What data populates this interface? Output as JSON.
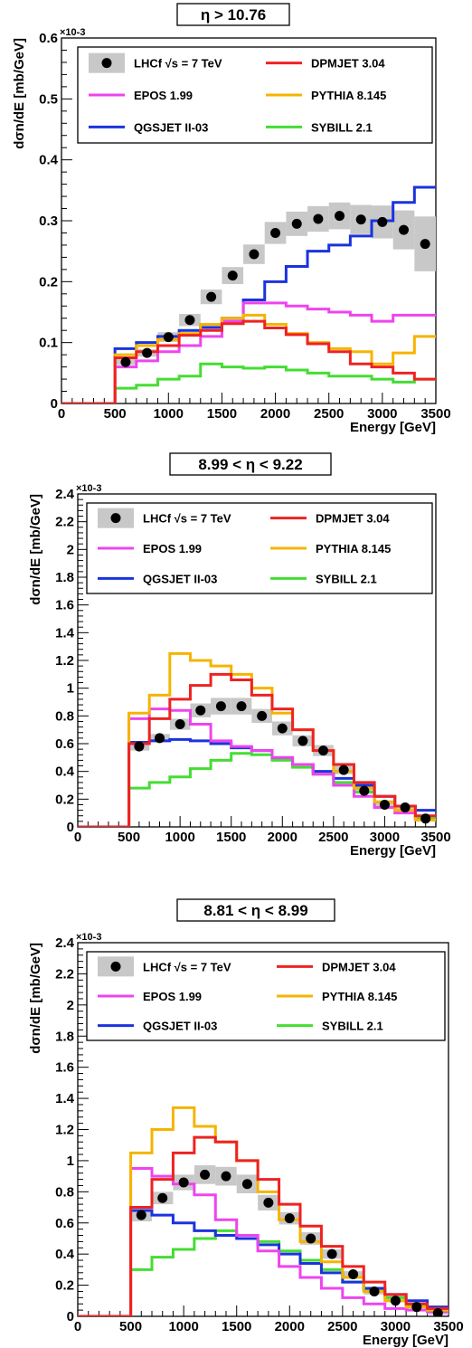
{
  "colors": {
    "LHCf": "#000000",
    "band": "#c8c8c8",
    "EPOS": "#ee44ee",
    "QGSJET": "#1a33dd",
    "DPMJET": "#ee2222",
    "PYTHIA": "#f5b400",
    "SYBILL": "#44dd33"
  },
  "chart_data": [
    {
      "type": "line",
      "title": "η > 10.76",
      "xlabel": "Energy [GeV]",
      "ylabel": "dσn/dE [mb/GeV]",
      "y_exponent": "×10-3",
      "xlim": [
        0,
        3500
      ],
      "ylim": [
        0,
        0.6
      ],
      "xticks": [
        0,
        500,
        1000,
        1500,
        2000,
        2500,
        3000,
        3500
      ],
      "xtick_labels": [
        "0",
        "500",
        "1000",
        "1500",
        "2000",
        "2500",
        "3000",
        "3500"
      ],
      "yticks": [
        0,
        0.1,
        0.2,
        0.3,
        0.4,
        0.5,
        0.6
      ],
      "ytick_labels": [
        "0",
        "0.1",
        "0.2",
        "0.3",
        "0.4",
        "0.5",
        "0.6"
      ],
      "bin_edges": [
        500,
        700,
        900,
        1100,
        1300,
        1500,
        1700,
        1900,
        2100,
        2300,
        2500,
        2700,
        2900,
        3100,
        3300,
        3500
      ],
      "legend": {
        "placement": "top",
        "entries": [
          {
            "label": "LHCf √s = 7 TeV",
            "key": "LHCf",
            "marker": "point"
          },
          {
            "label": "DPMJET 3.04",
            "key": "DPMJET",
            "marker": "line"
          },
          {
            "label": "EPOS 1.99",
            "key": "EPOS",
            "marker": "line"
          },
          {
            "label": "PYTHIA 8.145",
            "key": "PYTHIA",
            "marker": "line"
          },
          {
            "label": "QGSJET II-03",
            "key": "QGSJET",
            "marker": "line"
          },
          {
            "label": "SYBILL 2.1",
            "key": "SYBILL",
            "marker": "line"
          }
        ]
      },
      "data": {
        "name": "LHCf √s = 7 TeV",
        "x": [
          600,
          800,
          1000,
          1200,
          1400,
          1600,
          1800,
          2000,
          2200,
          2400,
          2600,
          2800,
          3000,
          3200,
          3400
        ],
        "y": [
          0.068,
          0.083,
          0.109,
          0.137,
          0.175,
          0.21,
          0.245,
          0.28,
          0.295,
          0.303,
          0.308,
          0.302,
          0.298,
          0.285,
          0.262
        ],
        "err": [
          0.005,
          0.006,
          0.008,
          0.01,
          0.012,
          0.014,
          0.016,
          0.018,
          0.02,
          0.021,
          0.022,
          0.024,
          0.027,
          0.032,
          0.045
        ]
      },
      "series": [
        {
          "name": "DPMJET 3.04",
          "key": "DPMJET",
          "values": [
            0.075,
            0.085,
            0.095,
            0.112,
            0.12,
            0.131,
            0.135,
            0.124,
            0.113,
            0.098,
            0.085,
            0.065,
            0.06,
            0.05,
            0.04
          ]
        },
        {
          "name": "PYTHIA 8.145",
          "key": "PYTHIA",
          "values": [
            0.08,
            0.095,
            0.105,
            0.115,
            0.13,
            0.14,
            0.145,
            0.13,
            0.115,
            0.1,
            0.09,
            0.085,
            0.065,
            0.083,
            0.11
          ]
        },
        {
          "name": "EPOS 1.99",
          "key": "EPOS",
          "values": [
            0.06,
            0.07,
            0.085,
            0.095,
            0.11,
            0.135,
            0.165,
            0.165,
            0.16,
            0.155,
            0.15,
            0.145,
            0.135,
            0.145,
            0.145
          ]
        },
        {
          "name": "QGSJET II-03",
          "key": "QGSJET",
          "values": [
            0.09,
            0.1,
            0.11,
            0.12,
            0.125,
            0.14,
            0.17,
            0.2,
            0.225,
            0.25,
            0.26,
            0.275,
            0.3,
            0.33,
            0.355
          ]
        },
        {
          "name": "SYBILL 2.1",
          "key": "SYBILL",
          "values": [
            0.025,
            0.03,
            0.04,
            0.045,
            0.065,
            0.06,
            0.058,
            0.06,
            0.055,
            0.05,
            0.045,
            0.045,
            0.04,
            0.035,
            0.04
          ]
        }
      ]
    },
    {
      "type": "line",
      "title": "8.99 < η < 9.22",
      "xlabel": "Energy [GeV]",
      "ylabel": "dσn/dE [mb/GeV]",
      "y_exponent": "×10-3",
      "xlim": [
        0,
        3500
      ],
      "ylim": [
        0,
        2.4
      ],
      "xticks": [
        0,
        500,
        1000,
        1500,
        2000,
        2500,
        3000,
        3500
      ],
      "xtick_labels": [
        "0",
        "500",
        "1000",
        "1500",
        "2000",
        "2500",
        "3000",
        "3500"
      ],
      "yticks": [
        0,
        0.2,
        0.4,
        0.6,
        0.8,
        1.0,
        1.2,
        1.4,
        1.6,
        1.8,
        2.0,
        2.2,
        2.4
      ],
      "ytick_labels": [
        "0",
        "0.2",
        "0.4",
        "0.6",
        "0.8",
        "1",
        "1.2",
        "1.4",
        "1.6",
        "1.8",
        "2",
        "2.2",
        "2.4"
      ],
      "bin_edges": [
        500,
        700,
        900,
        1100,
        1300,
        1500,
        1700,
        1900,
        2100,
        2300,
        2500,
        2700,
        2900,
        3100,
        3300,
        3500
      ],
      "legend": {
        "placement": "top",
        "entries": [
          {
            "label": "LHCf √s = 7 TeV",
            "key": "LHCf",
            "marker": "point"
          },
          {
            "label": "DPMJET 3.04",
            "key": "DPMJET",
            "marker": "line"
          },
          {
            "label": "EPOS 1.99",
            "key": "EPOS",
            "marker": "line"
          },
          {
            "label": "PYTHIA 8.145",
            "key": "PYTHIA",
            "marker": "line"
          },
          {
            "label": "QGSJET II-03",
            "key": "QGSJET",
            "marker": "line"
          },
          {
            "label": "SYBILL 2.1",
            "key": "SYBILL",
            "marker": "line"
          }
        ]
      },
      "data": {
        "name": "LHCf √s = 7 TeV",
        "x": [
          600,
          800,
          1000,
          1200,
          1400,
          1600,
          1800,
          2000,
          2200,
          2400,
          2600,
          2800,
          3000,
          3200,
          3400
        ],
        "y": [
          0.58,
          0.64,
          0.74,
          0.84,
          0.87,
          0.87,
          0.8,
          0.71,
          0.62,
          0.55,
          0.41,
          0.26,
          0.16,
          0.14,
          0.06
        ],
        "err": [
          0.03,
          0.03,
          0.04,
          0.05,
          0.06,
          0.06,
          0.05,
          0.05,
          0.04,
          0.04,
          0.03,
          0.02,
          0.02,
          0.02,
          0.01
        ]
      },
      "series": [
        {
          "name": "DPMJET 3.04",
          "key": "DPMJET",
          "values": [
            0.6,
            0.78,
            0.92,
            1.02,
            1.1,
            1.06,
            0.95,
            0.85,
            0.7,
            0.55,
            0.45,
            0.32,
            0.22,
            0.15,
            0.08
          ]
        },
        {
          "name": "PYTHIA 8.145",
          "key": "PYTHIA",
          "values": [
            0.82,
            0.95,
            1.25,
            1.2,
            1.16,
            1.1,
            1.0,
            0.82,
            0.7,
            0.55,
            0.4,
            0.28,
            0.18,
            0.12,
            0.05
          ]
        },
        {
          "name": "EPOS 1.99",
          "key": "EPOS",
          "values": [
            0.78,
            0.85,
            0.84,
            0.74,
            0.62,
            0.58,
            0.55,
            0.5,
            0.45,
            0.38,
            0.3,
            0.22,
            0.14,
            0.1,
            0.05
          ]
        },
        {
          "name": "QGSJET II-03",
          "key": "QGSJET",
          "values": [
            0.61,
            0.62,
            0.63,
            0.62,
            0.6,
            0.57,
            0.55,
            0.5,
            0.45,
            0.4,
            0.35,
            0.3,
            0.22,
            0.15,
            0.12
          ]
        },
        {
          "name": "SYBILL 2.1",
          "key": "SYBILL",
          "values": [
            0.28,
            0.32,
            0.36,
            0.42,
            0.48,
            0.53,
            0.52,
            0.48,
            0.43,
            0.38,
            0.32,
            0.25,
            0.18,
            0.12,
            0.06
          ]
        }
      ]
    },
    {
      "type": "line",
      "title": "8.81 < η < 8.99",
      "xlabel": "Energy [GeV]",
      "ylabel": "dσn/dE [mb/GeV]",
      "y_exponent": "×10-3",
      "xlim": [
        0,
        3500
      ],
      "ylim": [
        0,
        2.4
      ],
      "xticks": [
        0,
        500,
        1000,
        1500,
        2000,
        2500,
        3000,
        3500
      ],
      "xtick_labels": [
        "0",
        "500",
        "1000",
        "1500",
        "2000",
        "2500",
        "3000",
        "3500"
      ],
      "yticks": [
        0,
        0.2,
        0.4,
        0.6,
        0.8,
        1.0,
        1.2,
        1.4,
        1.6,
        1.8,
        2.0,
        2.2,
        2.4
      ],
      "ytick_labels": [
        "0",
        "0.2",
        "0.4",
        "0.6",
        "0.8",
        "1",
        "1.2",
        "1.4",
        "1.6",
        "1.8",
        "2",
        "2.2",
        "2.4"
      ],
      "bin_edges": [
        500,
        700,
        900,
        1100,
        1300,
        1500,
        1700,
        1900,
        2100,
        2300,
        2500,
        2700,
        2900,
        3100,
        3300,
        3500
      ],
      "legend": {
        "placement": "top",
        "entries": [
          {
            "label": "LHCf √s = 7 TeV",
            "key": "LHCf",
            "marker": "point"
          },
          {
            "label": "DPMJET 3.04",
            "key": "DPMJET",
            "marker": "line"
          },
          {
            "label": "EPOS 1.99",
            "key": "EPOS",
            "marker": "line"
          },
          {
            "label": "PYTHIA 8.145",
            "key": "PYTHIA",
            "marker": "line"
          },
          {
            "label": "QGSJET II-03",
            "key": "QGSJET",
            "marker": "line"
          },
          {
            "label": "SYBILL 2.1",
            "key": "SYBILL",
            "marker": "line"
          }
        ]
      },
      "data": {
        "name": "LHCf √s = 7 TeV",
        "x": [
          600,
          800,
          1000,
          1200,
          1400,
          1600,
          1800,
          2000,
          2200,
          2400,
          2600,
          2800,
          3000,
          3200,
          3400
        ],
        "y": [
          0.65,
          0.76,
          0.86,
          0.91,
          0.9,
          0.85,
          0.73,
          0.63,
          0.5,
          0.4,
          0.27,
          0.16,
          0.1,
          0.06,
          0.02
        ],
        "err": [
          0.04,
          0.04,
          0.05,
          0.06,
          0.06,
          0.06,
          0.05,
          0.04,
          0.04,
          0.03,
          0.02,
          0.02,
          0.01,
          0.01,
          0.01
        ]
      },
      "series": [
        {
          "name": "DPMJET 3.04",
          "key": "DPMJET",
          "values": [
            0.7,
            0.88,
            1.05,
            1.15,
            1.12,
            1.0,
            0.88,
            0.72,
            0.58,
            0.45,
            0.32,
            0.22,
            0.14,
            0.08,
            0.05
          ]
        },
        {
          "name": "PYTHIA 8.145",
          "key": "PYTHIA",
          "values": [
            1.05,
            1.2,
            1.34,
            1.22,
            1.12,
            1.0,
            0.8,
            0.62,
            0.48,
            0.35,
            0.25,
            0.16,
            0.1,
            0.06,
            0.04
          ]
        },
        {
          "name": "EPOS 1.99",
          "key": "EPOS",
          "values": [
            0.95,
            0.9,
            0.85,
            0.78,
            0.62,
            0.52,
            0.42,
            0.32,
            0.25,
            0.18,
            0.12,
            0.08,
            0.05,
            0.04,
            0.03
          ]
        },
        {
          "name": "QGSJET II-03",
          "key": "QGSJET",
          "values": [
            0.68,
            0.65,
            0.6,
            0.55,
            0.52,
            0.5,
            0.46,
            0.4,
            0.34,
            0.28,
            0.22,
            0.18,
            0.14,
            0.1,
            0.06
          ]
        },
        {
          "name": "SYBILL 2.1",
          "key": "SYBILL",
          "values": [
            0.3,
            0.38,
            0.43,
            0.5,
            0.55,
            0.52,
            0.48,
            0.42,
            0.36,
            0.3,
            0.22,
            0.17,
            0.12,
            0.07,
            0.04
          ]
        }
      ]
    }
  ]
}
